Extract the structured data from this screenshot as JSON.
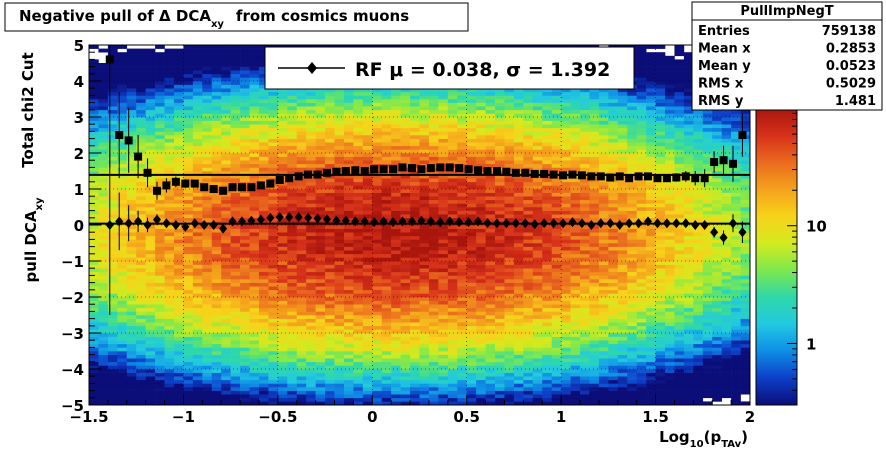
{
  "chart_data": {
    "type": "heatmap",
    "title": "Negative pull of Δ DCA",
    "title_sub": "xy",
    "title_tail": "from cosmics muons",
    "xlabel": "Log",
    "xlabel_sub": "10",
    "xlabel_tail_open": "(p",
    "xlabel_tail_sub": "TAv",
    "xlabel_tail_close": ")",
    "ylabel_outer": "Total chi2 Cut",
    "ylabel_inner": "pull DCA",
    "ylabel_inner_sub": "xy",
    "xlim": [
      -1.5,
      2
    ],
    "ylim": [
      -5,
      5
    ],
    "x_ticks": [
      -1.5,
      -1,
      -0.5,
      0,
      0.5,
      1,
      1.5,
      2
    ],
    "x_tick_labels": [
      "−1.5",
      "−1",
      "−0.5",
      "0",
      "0.5",
      "1",
      "1.5",
      "2"
    ],
    "y_ticks": [
      -5,
      -4,
      -3,
      -2,
      -1,
      0,
      1,
      2,
      3,
      4,
      5
    ],
    "y_tick_labels": [
      "−5",
      "−4",
      "−3",
      "−2",
      "−1",
      "0",
      "1",
      "2",
      "3",
      "4",
      "5"
    ],
    "grid": true,
    "colorbar": {
      "scale": "log",
      "range": [
        0.3,
        100
      ],
      "tick_values": [
        1,
        10
      ],
      "tick_labels": [
        "1",
        "10"
      ],
      "colors": [
        "#0b0d78",
        "#0d3fc8",
        "#0e8ee6",
        "#22c9e0",
        "#2fd8a8",
        "#7ee84d",
        "#d4ea1e",
        "#f8d21a",
        "#f4a11c",
        "#ea6a1e",
        "#d6301a",
        "#a8150c"
      ]
    },
    "density_model": {
      "center_x": 0.15,
      "center_y": -0.2,
      "sigma_x": 0.75,
      "sigma_y": 1.45,
      "peak": 90
    },
    "stats": {
      "name": "PullImpNegT",
      "rows": [
        {
          "label": "Entries",
          "value": "759138"
        },
        {
          "label": "Mean x",
          "value": "0.2853"
        },
        {
          "label": "Mean y",
          "value": "0.0523"
        },
        {
          "label": "RMS x",
          "value": "0.5029"
        },
        {
          "label": "RMS y",
          "value": "1.481"
        }
      ]
    },
    "fit_legend": {
      "label": "RF μ =  0.038, σ =   1.392",
      "placement": "top"
    },
    "fit_lines": {
      "mean": 0.038,
      "sigma": 1.392
    },
    "series": [
      {
        "marker": "square",
        "x": [
          -1.39,
          -1.34,
          -1.29,
          -1.24,
          -1.19,
          -1.14,
          -1.09,
          -1.04,
          -0.99,
          -0.94,
          -0.89,
          -0.84,
          -0.79,
          -0.74,
          -0.69,
          -0.64,
          -0.59,
          -0.54,
          -0.49,
          -0.44,
          -0.39,
          -0.34,
          -0.29,
          -0.24,
          -0.19,
          -0.14,
          -0.09,
          -0.04,
          0.01,
          0.06,
          0.11,
          0.16,
          0.21,
          0.26,
          0.31,
          0.36,
          0.41,
          0.46,
          0.51,
          0.56,
          0.61,
          0.66,
          0.71,
          0.76,
          0.81,
          0.86,
          0.91,
          0.96,
          1.01,
          1.06,
          1.11,
          1.16,
          1.21,
          1.26,
          1.31,
          1.36,
          1.41,
          1.46,
          1.51,
          1.56,
          1.61,
          1.66,
          1.71,
          1.76,
          1.81,
          1.86,
          1.91,
          1.96
        ],
        "y": [
          4.6,
          2.5,
          2.35,
          1.9,
          1.45,
          0.95,
          1.1,
          1.2,
          1.15,
          1.15,
          1.05,
          1.0,
          0.95,
          1.05,
          1.05,
          1.05,
          1.1,
          1.15,
          1.25,
          1.3,
          1.35,
          1.4,
          1.4,
          1.45,
          1.48,
          1.5,
          1.52,
          1.5,
          1.55,
          1.55,
          1.55,
          1.6,
          1.58,
          1.55,
          1.58,
          1.6,
          1.6,
          1.58,
          1.55,
          1.52,
          1.5,
          1.5,
          1.48,
          1.45,
          1.45,
          1.42,
          1.42,
          1.4,
          1.38,
          1.4,
          1.38,
          1.35,
          1.35,
          1.32,
          1.35,
          1.3,
          1.35,
          1.35,
          1.3,
          1.3,
          1.32,
          1.35,
          1.3,
          1.3,
          1.75,
          1.8,
          1.7,
          2.5
        ],
        "yerr": [
          3.0,
          1.2,
          0.9,
          0.6,
          0.4,
          0.25,
          0.2,
          0.15,
          0.12,
          0.1,
          0.08,
          0.06,
          0.05,
          0.04,
          0.03,
          0.02,
          0.02,
          0.02,
          0.02,
          0.02,
          0.01,
          0.01,
          0.01,
          0.01,
          0.01,
          0.01,
          0.01,
          0.01,
          0.01,
          0.01,
          0.01,
          0.01,
          0.01,
          0.01,
          0.01,
          0.01,
          0.01,
          0.01,
          0.01,
          0.01,
          0.01,
          0.01,
          0.01,
          0.01,
          0.02,
          0.02,
          0.02,
          0.02,
          0.02,
          0.03,
          0.03,
          0.03,
          0.03,
          0.04,
          0.04,
          0.05,
          0.06,
          0.07,
          0.08,
          0.1,
          0.12,
          0.15,
          0.2,
          0.25,
          0.3,
          0.4,
          0.5,
          0.6
        ]
      },
      {
        "marker": "diamond",
        "x": [
          -1.39,
          -1.34,
          -1.29,
          -1.24,
          -1.19,
          -1.14,
          -1.09,
          -1.04,
          -0.99,
          -0.94,
          -0.89,
          -0.84,
          -0.79,
          -0.74,
          -0.69,
          -0.64,
          -0.59,
          -0.54,
          -0.49,
          -0.44,
          -0.39,
          -0.34,
          -0.29,
          -0.24,
          -0.19,
          -0.14,
          -0.09,
          -0.04,
          0.01,
          0.06,
          0.11,
          0.16,
          0.21,
          0.26,
          0.31,
          0.36,
          0.41,
          0.46,
          0.51,
          0.56,
          0.61,
          0.66,
          0.71,
          0.76,
          0.81,
          0.86,
          0.91,
          0.96,
          1.01,
          1.06,
          1.11,
          1.16,
          1.21,
          1.26,
          1.31,
          1.36,
          1.41,
          1.46,
          1.51,
          1.56,
          1.61,
          1.66,
          1.71,
          1.76,
          1.81,
          1.86,
          1.91,
          1.96
        ],
        "y": [
          0.0,
          0.1,
          0.05,
          0.1,
          0.0,
          0.15,
          0.05,
          0.0,
          -0.05,
          0.05,
          0.0,
          0.0,
          -0.1,
          0.1,
          0.1,
          0.12,
          0.15,
          0.2,
          0.22,
          0.22,
          0.22,
          0.2,
          0.18,
          0.16,
          0.12,
          0.12,
          0.1,
          0.1,
          0.08,
          0.1,
          0.08,
          0.1,
          0.1,
          0.12,
          0.1,
          0.08,
          0.1,
          0.08,
          0.08,
          0.1,
          0.06,
          0.05,
          0.05,
          0.05,
          0.05,
          0.02,
          0.05,
          0.05,
          0.05,
          0.08,
          0.05,
          0.0,
          0.05,
          0.05,
          0.0,
          0.05,
          0.05,
          0.1,
          0.05,
          0.05,
          0.05,
          0.05,
          0.0,
          0.0,
          -0.2,
          -0.35,
          0.05,
          -0.2
        ],
        "yerr": [
          2.5,
          0.8,
          0.5,
          0.3,
          0.2,
          0.15,
          0.1,
          0.08,
          0.06,
          0.05,
          0.04,
          0.03,
          0.03,
          0.02,
          0.02,
          0.02,
          0.01,
          0.01,
          0.01,
          0.01,
          0.01,
          0.01,
          0.01,
          0.01,
          0.01,
          0.01,
          0.01,
          0.01,
          0.01,
          0.01,
          0.01,
          0.01,
          0.01,
          0.01,
          0.01,
          0.01,
          0.01,
          0.01,
          0.01,
          0.01,
          0.01,
          0.01,
          0.01,
          0.01,
          0.01,
          0.01,
          0.01,
          0.01,
          0.01,
          0.02,
          0.02,
          0.02,
          0.02,
          0.02,
          0.03,
          0.03,
          0.03,
          0.04,
          0.05,
          0.06,
          0.07,
          0.08,
          0.1,
          0.12,
          0.15,
          0.2,
          0.25,
          0.3
        ]
      }
    ]
  }
}
